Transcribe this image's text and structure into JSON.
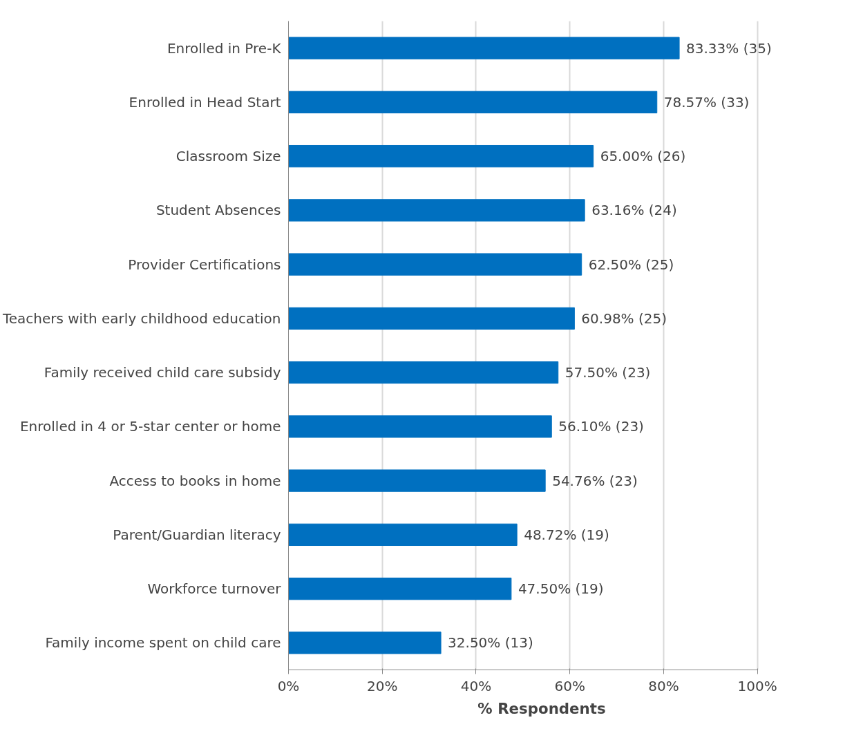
{
  "chart_data": {
    "type": "bar",
    "orientation": "horizontal",
    "xlabel": "% Respondents",
    "categories": [
      "Enrolled in Pre-K",
      "Enrolled in Head Start",
      "Classroom Size",
      "Student Absences",
      "Provider Certifications",
      "Teachers with early childhood education",
      "Family received child care subsidy",
      "Enrolled in 4 or 5-star center or home",
      "Access to books in home",
      "Parent/Guardian literacy",
      "Workforce turnover",
      "Family income spent on child care"
    ],
    "values": [
      83.33,
      78.57,
      65.0,
      63.16,
      62.5,
      60.98,
      57.5,
      56.1,
      54.76,
      48.72,
      47.5,
      32.5
    ],
    "value_labels": [
      "83.33% (35)",
      "78.57% (33)",
      "65.00% (26)",
      "63.16% (24)",
      "62.50% (25)",
      "60.98% (25)",
      "57.50% (23)",
      "56.10% (23)",
      "54.76% (23)",
      "48.72% (19)",
      "47.50% (19)",
      "32.50% (13)"
    ],
    "color": "#0070c0",
    "xlim": [
      0,
      100
    ],
    "xticks": [
      {
        "value": 0,
        "label": "0%"
      },
      {
        "value": 20,
        "label": "20%"
      },
      {
        "value": 40,
        "label": "40%"
      },
      {
        "value": 60,
        "label": "60%"
      },
      {
        "value": 80,
        "label": "80%"
      },
      {
        "value": 100,
        "label": "100%"
      }
    ],
    "grid": "x"
  }
}
